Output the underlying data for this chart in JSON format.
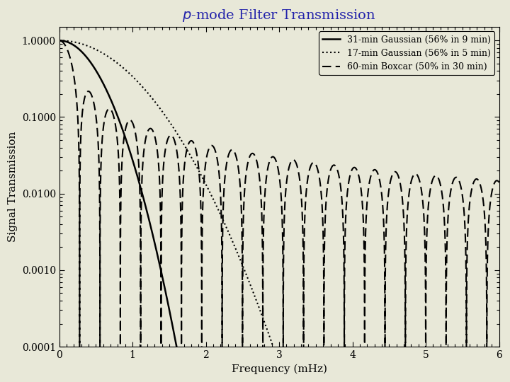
{
  "title": "$p$-mode Filter Transmission",
  "xlabel": "Frequency (mHz)",
  "ylabel": "Signal Transmission",
  "xlim": [
    0,
    6
  ],
  "ylim": [
    0.0001,
    1.5
  ],
  "legend_entries": [
    "31-min Gaussian (56% in 9 min)",
    "17-min Gaussian (56% in 5 min)",
    "60-min Boxcar (50% in 30 min)"
  ],
  "background_color": "#e8e8d8",
  "yticks": [
    0.0001,
    0.001,
    0.01,
    0.1,
    1.0
  ],
  "gauss31_sigma_mhz": 0.171,
  "gauss17_sigma_mhz": 0.312,
  "boxcar_T_min": 60,
  "title_color": "#2222aa",
  "title_fontsize": 14,
  "axis_fontsize": 11,
  "tick_fontsize": 10
}
